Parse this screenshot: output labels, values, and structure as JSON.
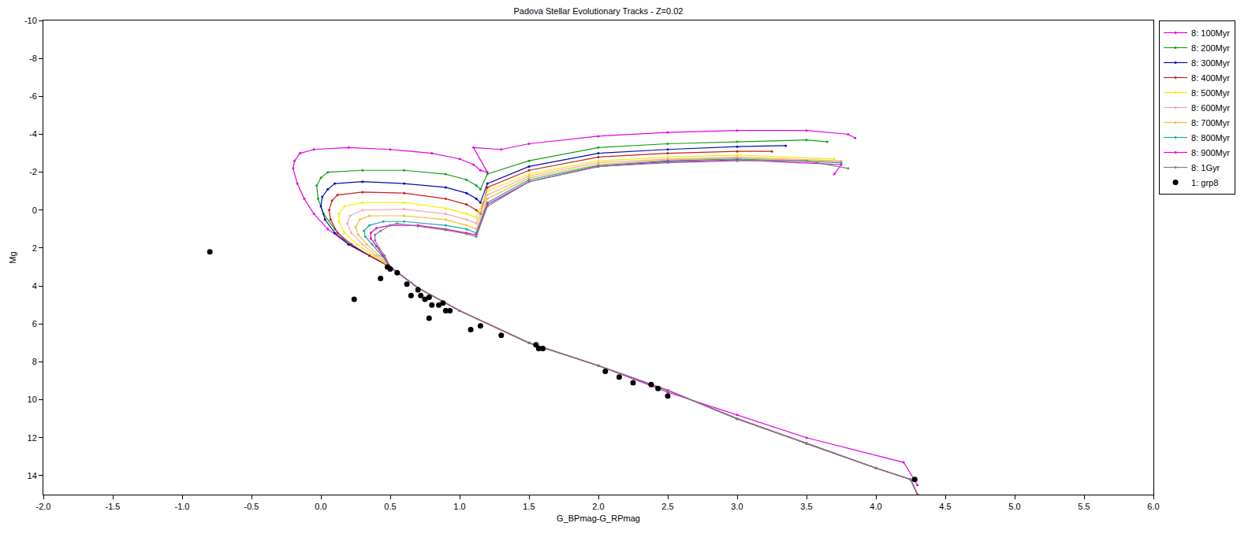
{
  "chart_data": {
    "type": "line",
    "title": "Padova Stellar Evolutionary Tracks - Z=0.02",
    "x_label": "G_BPmag-G_RPmag",
    "y_label": "Mg",
    "xlim": [
      -2,
      6
    ],
    "ylim": [
      15,
      -10
    ],
    "xticks": [
      {
        "value": -2,
        "label": "-2.0"
      },
      {
        "value": -1.5,
        "label": "-1.5"
      },
      {
        "value": -1,
        "label": "-1.0"
      },
      {
        "value": -0.5,
        "label": "-0.5"
      },
      {
        "value": 0,
        "label": "0.0"
      },
      {
        "value": 0.5,
        "label": "0.5"
      },
      {
        "value": 1,
        "label": "1.0"
      },
      {
        "value": 1.5,
        "label": "1.5"
      },
      {
        "value": 2,
        "label": "2.0"
      },
      {
        "value": 2.5,
        "label": "2.5"
      },
      {
        "value": 3,
        "label": "3.0"
      },
      {
        "value": 3.5,
        "label": "3.5"
      },
      {
        "value": 4,
        "label": "4.0"
      },
      {
        "value": 4.5,
        "label": "4.5"
      },
      {
        "value": 5,
        "label": "5.0"
      },
      {
        "value": 5.5,
        "label": "5.5"
      },
      {
        "value": 6,
        "label": "6.0"
      }
    ],
    "yticks": [
      -10,
      -8,
      -6,
      -4,
      -2,
      0,
      2,
      4,
      6,
      8,
      10,
      12,
      14
    ],
    "grid": false,
    "legend": "right",
    "series": [
      {
        "name": "8: 100Myr",
        "color": "#e600e6",
        "type": "line",
        "marker": "circle",
        "x": [
          4.3,
          4.2,
          3.5,
          3.0,
          2.5,
          2.0,
          1.5,
          1.0,
          0.7,
          0.5,
          0.35,
          0.2,
          0.05,
          -0.05,
          -0.12,
          -0.17,
          -0.2,
          -0.19,
          -0.15,
          -0.05,
          0.2,
          0.5,
          0.8,
          1.0,
          1.1,
          1.15,
          1.2,
          1.1,
          1.3,
          1.5,
          2.0,
          2.5,
          3.0,
          3.5,
          3.8,
          3.85
        ],
        "values": [
          14.5,
          13.3,
          12.0,
          10.8,
          9.6,
          8.2,
          7.0,
          5.3,
          4.1,
          3.0,
          2.4,
          1.8,
          1.0,
          0.2,
          -0.6,
          -1.4,
          -2.2,
          -2.6,
          -3.0,
          -3.2,
          -3.3,
          -3.2,
          -3.0,
          -2.7,
          -2.4,
          -2.1,
          -2.0,
          -3.3,
          -3.2,
          -3.5,
          -3.9,
          -4.1,
          -4.2,
          -4.2,
          -4.0,
          -3.8
        ]
      },
      {
        "name": "8: 200Myr",
        "color": "#1a9e1a",
        "type": "line",
        "marker": "circle",
        "x": [
          4.3,
          4.25,
          4.0,
          3.5,
          3.0,
          2.5,
          2.0,
          1.5,
          1.0,
          0.7,
          0.5,
          0.35,
          0.2,
          0.1,
          0.02,
          -0.02,
          -0.03,
          0.0,
          0.05,
          0.3,
          0.6,
          0.9,
          1.05,
          1.12,
          1.15,
          1.2,
          1.5,
          2.0,
          2.5,
          3.0,
          3.5,
          3.65
        ],
        "values": [
          15,
          14.2,
          13.6,
          12.3,
          11.0,
          9.5,
          8.2,
          7.0,
          5.3,
          4.1,
          3.0,
          2.4,
          1.8,
          1.0,
          0.2,
          -0.6,
          -1.3,
          -1.7,
          -2.0,
          -2.1,
          -2.1,
          -1.9,
          -1.6,
          -1.3,
          -1.1,
          -1.9,
          -2.6,
          -3.3,
          -3.5,
          -3.6,
          -3.7,
          -3.6
        ]
      },
      {
        "name": "8: 300Myr",
        "color": "#0010b0",
        "type": "line",
        "marker": "circle",
        "x": [
          4.3,
          4.25,
          4.0,
          3.5,
          3.0,
          2.5,
          2.0,
          1.5,
          1.0,
          0.7,
          0.5,
          0.35,
          0.2,
          0.1,
          0.03,
          0.0,
          0.01,
          0.05,
          0.1,
          0.3,
          0.6,
          0.9,
          1.05,
          1.12,
          1.15,
          1.2,
          1.5,
          2.0,
          2.5,
          3.0,
          3.35
        ],
        "values": [
          15,
          14.2,
          13.6,
          12.3,
          11.0,
          9.5,
          8.2,
          7.0,
          5.3,
          4.1,
          3.0,
          2.4,
          1.8,
          1.2,
          0.5,
          -0.2,
          -0.7,
          -1.1,
          -1.4,
          -1.5,
          -1.4,
          -1.2,
          -0.9,
          -0.6,
          -0.4,
          -1.4,
          -2.3,
          -3.0,
          -3.2,
          -3.35,
          -3.4
        ]
      },
      {
        "name": "8: 400Myr",
        "color": "#c81e1e",
        "type": "line",
        "marker": "circle",
        "x": [
          4.3,
          4.25,
          4.0,
          3.5,
          3.0,
          2.5,
          2.0,
          1.5,
          1.0,
          0.7,
          0.5,
          0.35,
          0.22,
          0.12,
          0.07,
          0.06,
          0.08,
          0.12,
          0.3,
          0.6,
          0.9,
          1.05,
          1.12,
          1.15,
          1.2,
          1.5,
          2.0,
          2.5,
          3.0,
          3.25
        ],
        "values": [
          15,
          14.2,
          13.6,
          12.3,
          11.0,
          9.5,
          8.2,
          7.0,
          5.3,
          4.1,
          3.0,
          2.4,
          1.8,
          1.2,
          0.5,
          0.0,
          -0.5,
          -0.8,
          -0.95,
          -0.9,
          -0.6,
          -0.3,
          0.0,
          0.2,
          -1.2,
          -2.1,
          -2.8,
          -3.0,
          -3.1,
          -3.1
        ]
      },
      {
        "name": "8: 500Myr",
        "color": "#f0f000",
        "type": "line",
        "marker": "circle",
        "x": [
          4.3,
          4.25,
          4.0,
          3.5,
          3.0,
          2.5,
          2.0,
          1.5,
          1.0,
          0.7,
          0.5,
          0.38,
          0.26,
          0.17,
          0.13,
          0.13,
          0.17,
          0.3,
          0.6,
          0.9,
          1.05,
          1.12,
          1.2,
          1.5,
          2.0,
          2.5,
          3.0,
          3.7
        ],
        "values": [
          15,
          14.2,
          13.6,
          12.3,
          11.0,
          9.5,
          8.2,
          7.0,
          5.3,
          4.1,
          3.0,
          2.4,
          1.8,
          1.2,
          0.6,
          0.2,
          -0.2,
          -0.4,
          -0.4,
          -0.1,
          0.2,
          0.4,
          -1.0,
          -1.9,
          -2.6,
          -2.8,
          -2.9,
          -2.7
        ]
      },
      {
        "name": "8: 600Myr",
        "color": "#f4a6b8",
        "type": "line",
        "marker": "circle",
        "x": [
          4.3,
          4.25,
          4.0,
          3.5,
          3.0,
          2.5,
          2.0,
          1.5,
          1.0,
          0.7,
          0.5,
          0.4,
          0.3,
          0.22,
          0.19,
          0.21,
          0.3,
          0.6,
          0.9,
          1.05,
          1.12,
          1.2,
          1.5,
          2.0,
          2.5,
          3.0,
          3.75
        ],
        "values": [
          15,
          14.2,
          13.6,
          12.3,
          11.0,
          9.5,
          8.2,
          7.0,
          5.3,
          4.1,
          3.0,
          2.4,
          1.8,
          1.2,
          0.7,
          0.3,
          0.0,
          -0.05,
          0.2,
          0.5,
          0.7,
          -0.8,
          -1.8,
          -2.5,
          -2.7,
          -2.8,
          -2.6
        ]
      },
      {
        "name": "8: 700Myr",
        "color": "#f0c030",
        "type": "line",
        "marker": "circle",
        "x": [
          4.3,
          4.25,
          4.0,
          3.5,
          3.0,
          2.5,
          2.0,
          1.5,
          1.0,
          0.7,
          0.5,
          0.42,
          0.33,
          0.27,
          0.25,
          0.28,
          0.35,
          0.6,
          0.9,
          1.05,
          1.12,
          1.2,
          1.5,
          2.0,
          2.5,
          3.0,
          3.75
        ],
        "values": [
          15,
          14.2,
          13.6,
          12.3,
          11.0,
          9.5,
          8.2,
          7.0,
          5.3,
          4.1,
          3.0,
          2.4,
          1.8,
          1.3,
          0.9,
          0.5,
          0.3,
          0.3,
          0.5,
          0.8,
          1.0,
          -0.6,
          -1.7,
          -2.4,
          -2.65,
          -2.75,
          -2.55
        ]
      },
      {
        "name": "8: 800Myr",
        "color": "#20a8a8",
        "type": "line",
        "marker": "circle",
        "x": [
          4.3,
          4.25,
          4.0,
          3.5,
          3.0,
          2.5,
          2.0,
          1.5,
          1.0,
          0.7,
          0.5,
          0.44,
          0.37,
          0.32,
          0.31,
          0.35,
          0.45,
          0.6,
          0.9,
          1.05,
          1.12,
          1.2,
          1.5,
          2.0,
          2.5,
          3.0,
          3.75
        ],
        "values": [
          15,
          14.2,
          13.6,
          12.3,
          11.0,
          9.5,
          8.2,
          7.0,
          5.3,
          4.1,
          3.0,
          2.4,
          1.8,
          1.4,
          1.1,
          0.8,
          0.6,
          0.6,
          0.8,
          1.0,
          1.2,
          -0.4,
          -1.6,
          -2.35,
          -2.6,
          -2.7,
          -2.5
        ]
      },
      {
        "name": "8: 900Myr",
        "color": "#e600e6",
        "type": "line",
        "marker": "circle",
        "x": [
          4.3,
          4.25,
          4.0,
          3.5,
          3.0,
          2.5,
          2.0,
          1.5,
          1.0,
          0.7,
          0.5,
          0.45,
          0.4,
          0.36,
          0.36,
          0.4,
          0.5,
          0.7,
          0.9,
          1.05,
          1.12,
          1.2,
          1.5,
          2.0,
          2.5,
          3.0,
          3.75,
          3.7
        ],
        "values": [
          15,
          14.2,
          13.6,
          12.3,
          11.0,
          9.5,
          8.2,
          7.0,
          5.3,
          4.1,
          3.0,
          2.4,
          1.9,
          1.5,
          1.2,
          0.95,
          0.8,
          0.8,
          1.0,
          1.2,
          1.3,
          -0.3,
          -1.5,
          -2.3,
          -2.55,
          -2.65,
          -2.4,
          -1.9
        ]
      },
      {
        "name": "8: 1Gyr",
        "color": "#808080",
        "type": "line",
        "marker": "circle",
        "x": [
          4.3,
          4.25,
          4.0,
          3.5,
          3.0,
          2.5,
          2.0,
          1.5,
          1.0,
          0.7,
          0.5,
          0.46,
          0.42,
          0.39,
          0.39,
          0.43,
          0.5,
          0.55,
          0.7,
          0.9,
          1.05,
          1.12,
          1.2,
          1.5,
          2.0,
          2.5,
          3.0,
          3.5,
          3.8
        ],
        "values": [
          15,
          14.2,
          13.6,
          12.3,
          11.0,
          9.5,
          8.2,
          7.0,
          5.3,
          4.1,
          3.0,
          2.4,
          2.0,
          1.6,
          1.3,
          1.1,
          0.8,
          0.7,
          0.85,
          1.05,
          1.25,
          1.4,
          -0.2,
          -1.5,
          -2.3,
          -2.5,
          -2.6,
          -2.6,
          -2.2
        ]
      },
      {
        "name": "1: grp8",
        "color": "#000000",
        "type": "scatter",
        "marker": "circle",
        "x": [
          -0.8,
          0.24,
          0.43,
          0.48,
          0.5,
          0.55,
          0.62,
          0.65,
          0.7,
          0.72,
          0.75,
          0.78,
          0.8,
          0.78,
          0.85,
          0.88,
          0.9,
          0.93,
          1.08,
          1.15,
          1.3,
          1.55,
          1.57,
          1.6,
          2.05,
          2.15,
          2.25,
          2.38,
          2.43,
          2.5,
          4.28
        ],
        "values": [
          2.2,
          4.7,
          3.6,
          3.0,
          3.1,
          3.3,
          3.9,
          4.5,
          4.2,
          4.5,
          4.7,
          4.6,
          5.0,
          5.7,
          5.0,
          4.9,
          5.3,
          5.3,
          6.3,
          6.1,
          6.6,
          7.1,
          7.3,
          7.3,
          8.5,
          8.8,
          9.1,
          9.2,
          9.4,
          9.8,
          14.2
        ]
      }
    ]
  }
}
